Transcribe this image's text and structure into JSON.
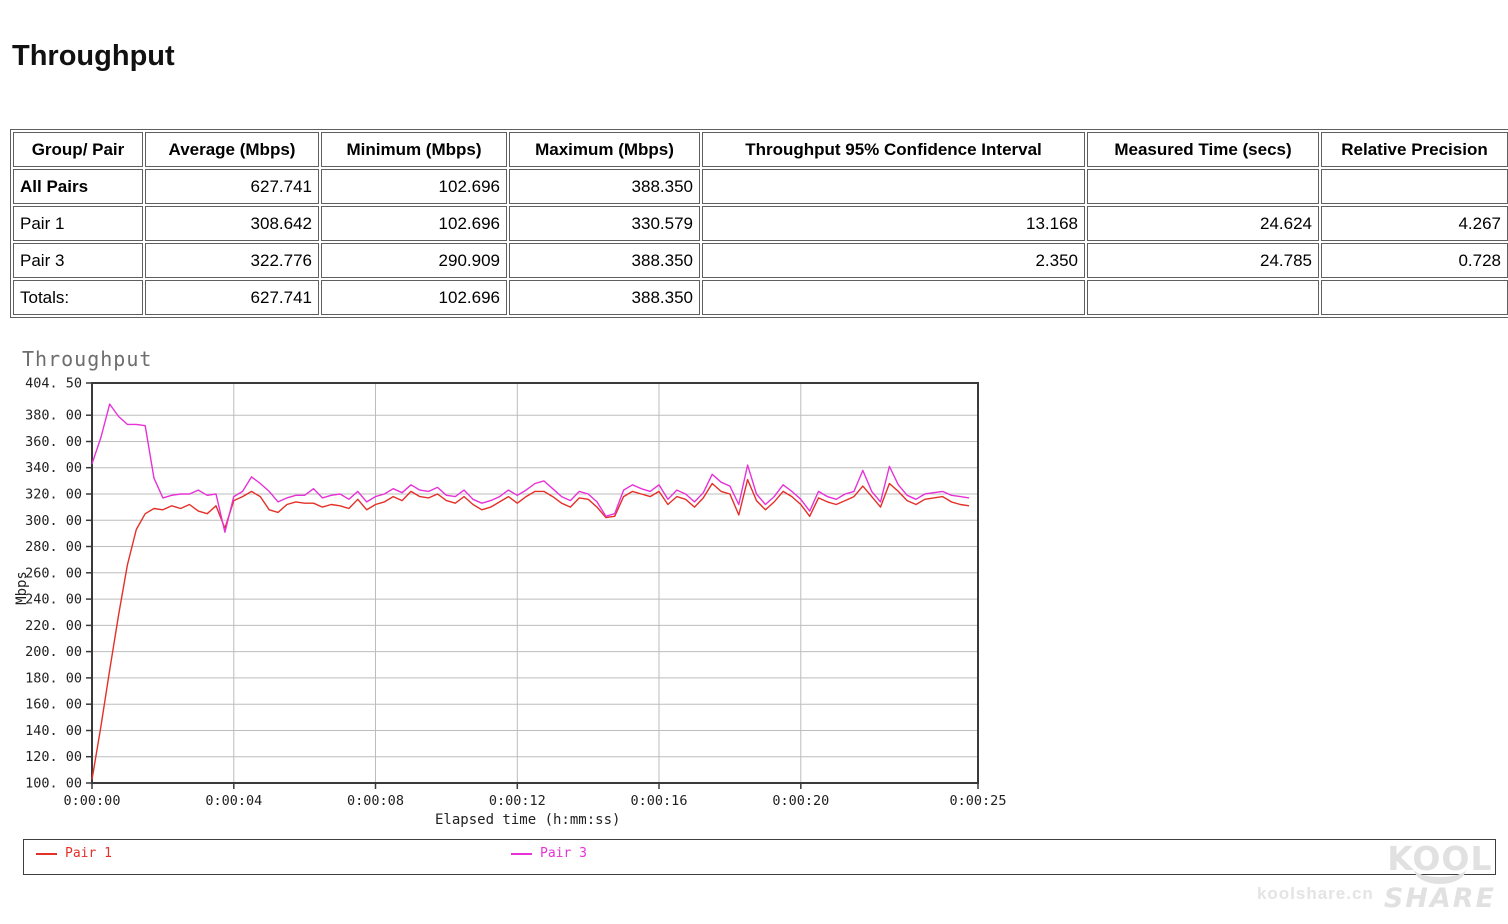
{
  "page": {
    "title": "Throughput"
  },
  "table": {
    "columns": [
      "Group/ Pair",
      "Average (Mbps)",
      "Minimum (Mbps)",
      "Maximum (Mbps)",
      "Throughput 95% Confidence Interval",
      "Measured Time (secs)",
      "Relative Precision"
    ],
    "rows": [
      {
        "bold": true,
        "cells": [
          "All Pairs",
          "627.741",
          "102.696",
          "388.350",
          "",
          "",
          ""
        ]
      },
      {
        "bold": false,
        "cells": [
          "Pair 1",
          "308.642",
          "102.696",
          "330.579",
          "13.168",
          "24.624",
          "4.267"
        ]
      },
      {
        "bold": false,
        "cells": [
          "Pair 3",
          "322.776",
          "290.909",
          "388.350",
          "2.350",
          "24.785",
          "0.728"
        ]
      },
      {
        "bold": false,
        "cells": [
          "Totals:",
          "627.741",
          "102.696",
          "388.350",
          "",
          "",
          ""
        ]
      }
    ]
  },
  "chart_data": {
    "type": "line",
    "title": "Throughput",
    "ylabel": "Mbps",
    "xlabel": "Elapsed time (h:mm:ss)",
    "ylim": [
      100.0,
      404.5
    ],
    "xlim_seconds": [
      0,
      25
    ],
    "grid": true,
    "legend_position": "bottom",
    "y_ticks": [
      {
        "value": 404.5,
        "label": "404. 50"
      },
      {
        "value": 380.0,
        "label": "380. 00"
      },
      {
        "value": 360.0,
        "label": "360. 00"
      },
      {
        "value": 340.0,
        "label": "340. 00"
      },
      {
        "value": 320.0,
        "label": "320. 00"
      },
      {
        "value": 300.0,
        "label": "300. 00"
      },
      {
        "value": 280.0,
        "label": "280. 00"
      },
      {
        "value": 260.0,
        "label": "260. 00"
      },
      {
        "value": 240.0,
        "label": "240. 00"
      },
      {
        "value": 220.0,
        "label": "220. 00"
      },
      {
        "value": 200.0,
        "label": "200. 00"
      },
      {
        "value": 180.0,
        "label": "180. 00"
      },
      {
        "value": 160.0,
        "label": "160. 00"
      },
      {
        "value": 140.0,
        "label": "140. 00"
      },
      {
        "value": 120.0,
        "label": "120. 00"
      },
      {
        "value": 100.0,
        "label": "100. 00"
      }
    ],
    "x_ticks": [
      {
        "seconds": 0,
        "label": "0:00:00"
      },
      {
        "seconds": 4,
        "label": "0:00:04"
      },
      {
        "seconds": 8,
        "label": "0:00:08"
      },
      {
        "seconds": 12,
        "label": "0:00:12"
      },
      {
        "seconds": 16,
        "label": "0:00:16"
      },
      {
        "seconds": 20,
        "label": "0:00:20"
      },
      {
        "seconds": 25,
        "label": "0:00:25"
      }
    ],
    "x_seconds_start": 0,
    "x_seconds_step": 0.25,
    "series": [
      {
        "name": "Pair 1",
        "color": "#e43028",
        "values": [
          102.7,
          143,
          186,
          228,
          266,
          293,
          305,
          309,
          308,
          311,
          309,
          312,
          307,
          305,
          311,
          294,
          315,
          318,
          322,
          318,
          308,
          306,
          312,
          314,
          313,
          313,
          310,
          312,
          311,
          309,
          316,
          308,
          312,
          314,
          318,
          315,
          322,
          318,
          317,
          320,
          315,
          313,
          318,
          312,
          308,
          310,
          314,
          318,
          313,
          318,
          322,
          322,
          318,
          313,
          310,
          317,
          316,
          310,
          302,
          303,
          318,
          322,
          320,
          318,
          322,
          312,
          318,
          316,
          310,
          317,
          328,
          322,
          320,
          304,
          331,
          315,
          308,
          314,
          322,
          318,
          312,
          303,
          317,
          314,
          312,
          315,
          318,
          326,
          318,
          310,
          328,
          322,
          315,
          312,
          316,
          317,
          318,
          314,
          312,
          311
        ]
      },
      {
        "name": "Pair 3",
        "color": "#e632d7",
        "values": [
          343,
          363,
          388.4,
          379,
          373,
          373,
          372,
          332,
          317,
          319,
          320,
          320,
          323,
          319,
          320,
          290.9,
          318,
          322,
          333,
          328,
          322,
          314,
          317,
          319,
          319,
          324,
          317,
          319,
          320,
          316,
          322,
          314,
          318,
          320,
          324,
          321,
          327,
          323,
          322,
          325,
          319,
          318,
          323,
          316,
          313,
          315,
          318,
          323,
          319,
          323,
          328,
          330,
          324,
          318,
          315,
          322,
          320,
          314,
          303,
          305,
          323,
          327,
          324,
          322,
          327,
          316,
          323,
          320,
          314,
          321,
          335,
          329,
          326,
          312,
          342,
          320,
          312,
          318,
          327,
          322,
          316,
          307,
          322,
          318,
          316,
          320,
          322,
          338,
          322,
          314,
          341,
          327,
          319,
          316,
          320,
          321,
          322,
          319,
          318,
          317
        ]
      }
    ],
    "colors": {
      "grid": "#bdbdbd",
      "axis": "#3a3a3a",
      "tick_text": "#222222",
      "title_text": "#6d6d6d"
    }
  },
  "watermark": {
    "site_text": "koolshare.cn",
    "logo_line1": "KOOL",
    "logo_line2": "SHARE"
  }
}
